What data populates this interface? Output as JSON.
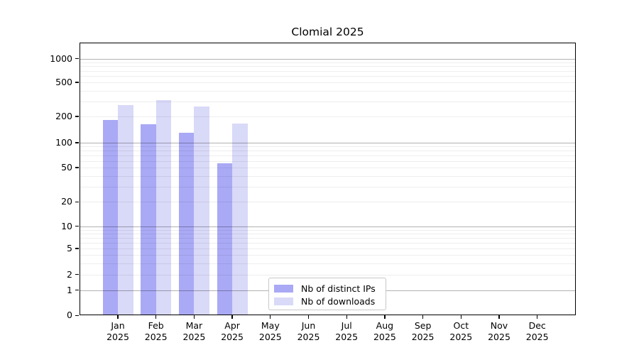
{
  "title": "Clomial 2025",
  "chart_data": {
    "type": "bar",
    "title": "Clomial 2025",
    "categories": [
      {
        "month": "Jan",
        "year": "2025"
      },
      {
        "month": "Feb",
        "year": "2025"
      },
      {
        "month": "Mar",
        "year": "2025"
      },
      {
        "month": "Apr",
        "year": "2025"
      },
      {
        "month": "May",
        "year": "2025"
      },
      {
        "month": "Jun",
        "year": "2025"
      },
      {
        "month": "Jul",
        "year": "2025"
      },
      {
        "month": "Aug",
        "year": "2025"
      },
      {
        "month": "Sep",
        "year": "2025"
      },
      {
        "month": "Oct",
        "year": "2025"
      },
      {
        "month": "Nov",
        "year": "2025"
      },
      {
        "month": "Dec",
        "year": "2025"
      }
    ],
    "series": [
      {
        "name": "Nb of distinct IPs",
        "color": "#a9a9f5",
        "values": [
          183,
          163,
          131,
          56,
          0,
          0,
          0,
          0,
          0,
          0,
          0,
          0
        ]
      },
      {
        "name": "Nb of downloads",
        "color": "#d9d9f8",
        "values": [
          270,
          310,
          263,
          166,
          0,
          0,
          0,
          0,
          0,
          0,
          0,
          0
        ]
      }
    ],
    "y_axis": {
      "scale": "log (linear below 1)",
      "tick_values": [
        0,
        1,
        2,
        5,
        10,
        20,
        50,
        100,
        200,
        500,
        1000
      ],
      "tick_labels": [
        "0",
        "1",
        "2",
        "5",
        "10",
        "20",
        "50",
        "100",
        "200",
        "500",
        "1000"
      ]
    },
    "grid": "horizontal major and minor lines",
    "legend_position": "bottom center-left inside plot",
    "background_color": "#ffffff"
  },
  "legend": {
    "items": [
      {
        "label": "Nb of distinct IPs"
      },
      {
        "label": "Nb of downloads"
      }
    ]
  }
}
